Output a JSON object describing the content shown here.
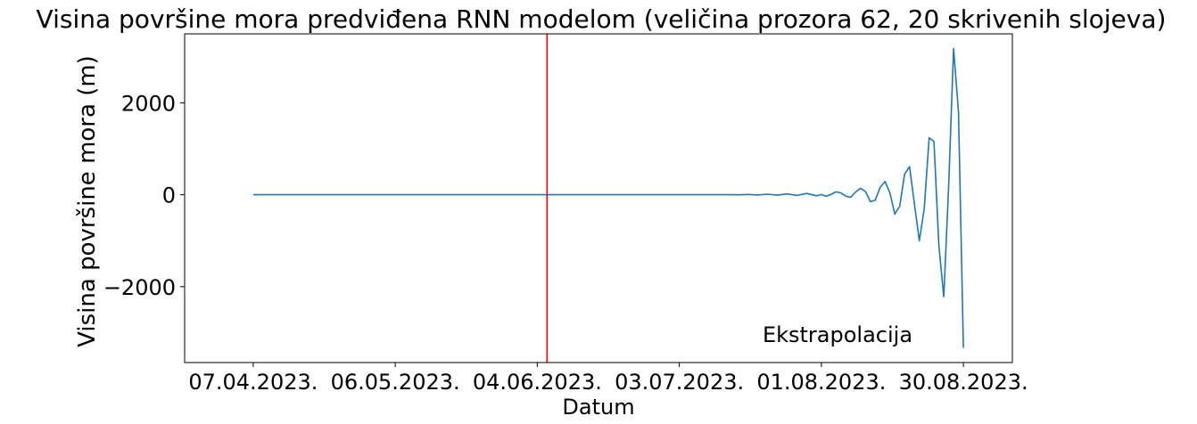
{
  "chart_data": {
    "type": "line",
    "title": "Visina površine mora predviđena RNN modelom (veličina prozora 62, 20 skrivenih slojeva)",
    "xlabel": "Datum",
    "ylabel": "Visina površine mora (m)",
    "x_tick_labels": [
      "07.04.2023.",
      "06.05.2023.",
      "04.06.2023.",
      "03.07.2023.",
      "01.08.2023.",
      "30.08.2023."
    ],
    "x_ticks": [
      "2023-04-07",
      "2023-05-06",
      "2023-06-04",
      "2023-07-03",
      "2023-08-01",
      "2023-08-30"
    ],
    "x_range": [
      "2023-03-24",
      "2023-09-09"
    ],
    "y_ticks": [
      -2000,
      0,
      2000
    ],
    "y_tick_labels": [
      "−2000",
      "0",
      "2000"
    ],
    "ylim": [
      -3650,
      3500
    ],
    "grid": false,
    "vline": {
      "x": "2023-06-06",
      "color": "#ff0000"
    },
    "annotation": {
      "text": "Ekstrapolacija",
      "color": "#ff0000",
      "x": "2023-07-20",
      "y": -3200
    },
    "series": [
      {
        "color": "#1f77b4",
        "points": [
          [
            "2023-04-07",
            0
          ],
          [
            "2023-05-01",
            0
          ],
          [
            "2023-06-01",
            0
          ],
          [
            "2023-07-01",
            0
          ],
          [
            "2023-07-10",
            0
          ],
          [
            "2023-07-13",
            3
          ],
          [
            "2023-07-15",
            -2
          ],
          [
            "2023-07-17",
            6
          ],
          [
            "2023-07-19",
            -5
          ],
          [
            "2023-07-21",
            12
          ],
          [
            "2023-07-23",
            -10
          ],
          [
            "2023-07-25",
            18
          ],
          [
            "2023-07-27",
            -14
          ],
          [
            "2023-07-29",
            28
          ],
          [
            "2023-07-31",
            -22
          ],
          [
            "2023-08-01",
            5
          ],
          [
            "2023-08-02",
            -35
          ],
          [
            "2023-08-03",
            10
          ],
          [
            "2023-08-04",
            62
          ],
          [
            "2023-08-05",
            40
          ],
          [
            "2023-08-06",
            -30
          ],
          [
            "2023-08-07",
            -55
          ],
          [
            "2023-08-08",
            60
          ],
          [
            "2023-08-09",
            140
          ],
          [
            "2023-08-10",
            70
          ],
          [
            "2023-08-11",
            -150
          ],
          [
            "2023-08-12",
            -120
          ],
          [
            "2023-08-13",
            160
          ],
          [
            "2023-08-14",
            290
          ],
          [
            "2023-08-15",
            40
          ],
          [
            "2023-08-16",
            -420
          ],
          [
            "2023-08-17",
            -250
          ],
          [
            "2023-08-18",
            450
          ],
          [
            "2023-08-19",
            610
          ],
          [
            "2023-08-20",
            -200
          ],
          [
            "2023-08-21",
            -1000
          ],
          [
            "2023-08-22",
            -300
          ],
          [
            "2023-08-23",
            1240
          ],
          [
            "2023-08-24",
            1160
          ],
          [
            "2023-08-25",
            -1100
          ],
          [
            "2023-08-26",
            -2220
          ],
          [
            "2023-08-27",
            200
          ],
          [
            "2023-08-28",
            3180
          ],
          [
            "2023-08-29",
            1800
          ],
          [
            "2023-08-30",
            -3330
          ]
        ]
      }
    ]
  }
}
